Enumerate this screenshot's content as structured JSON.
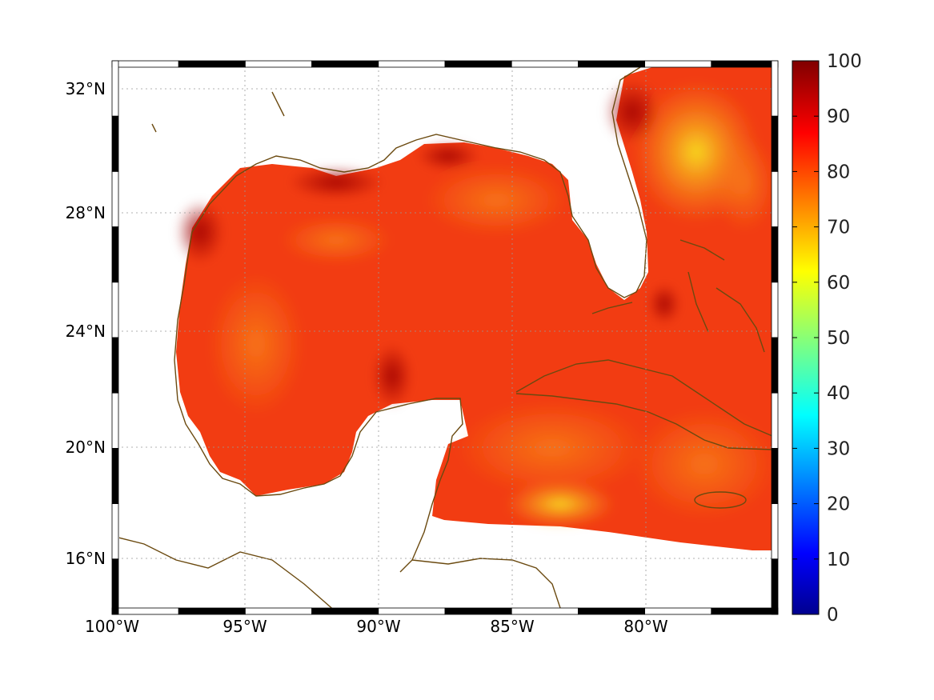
{
  "map": {
    "lat_labels": [
      "32°N",
      "28°N",
      "24°N",
      "20°N",
      "16°N"
    ],
    "lon_labels": [
      "100°W",
      "95°W",
      "90°W",
      "85°W",
      "80°W"
    ],
    "extent": {
      "lon_min": -100,
      "lon_max": -75,
      "lat_min": 14,
      "lat_max": 33
    },
    "grid": true,
    "frame_style": "alternating black/white checker border"
  },
  "colorbar": {
    "min": 0,
    "max": 100,
    "tick_labels": [
      "100",
      "90",
      "80",
      "70",
      "60",
      "50",
      "40",
      "30",
      "20",
      "10",
      "0"
    ],
    "colormap": "jet",
    "location": "right"
  },
  "colors": {
    "coastline": "#6b4a10",
    "land": "#ffffff",
    "field_dominant": "#f03a10",
    "field_high": "#a80000",
    "field_low": "#f8d820"
  },
  "field_description_values": {
    "dominant_range": [
      78,
      92
    ],
    "max_region": "northern Gulf coast / Atlantic off Georgia ~95-98",
    "min_region": "Atlantic off NE Florida ~62-68"
  }
}
